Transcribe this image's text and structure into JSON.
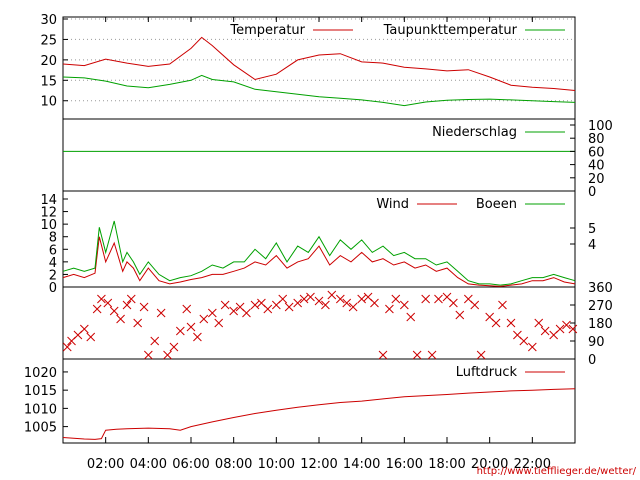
{
  "colors": {
    "red": "#cc0000",
    "green": "#00a000",
    "grid": "#999999",
    "url": "#cc0000"
  },
  "source_url": "http://www.tiefflieger.de/wetter/",
  "chart_data": [
    {
      "id": "temp",
      "type": "line",
      "title": "",
      "ylim": [
        7,
        30
      ],
      "yticks": [
        "30",
        "25",
        "20",
        "15",
        "10"
      ],
      "grid": true,
      "legend": "top-right",
      "x": [
        0,
        1,
        2,
        3,
        4,
        5,
        6,
        6.5,
        7,
        8,
        9,
        10,
        11,
        12,
        13,
        14,
        15,
        16,
        17,
        18,
        19,
        20,
        21,
        22,
        23,
        24
      ],
      "series": [
        {
          "name": "Temperatur",
          "color": "#cc0000",
          "values": [
            19,
            18.6,
            20.2,
            19.2,
            18.4,
            19.0,
            22.8,
            25.5,
            23.5,
            18.8,
            15.2,
            16.5,
            20.0,
            21.2,
            21.5,
            19.5,
            19.2,
            18.2,
            17.8,
            17.3,
            17.6,
            15.8,
            13.8,
            13.3,
            13.0,
            12.5
          ]
        },
        {
          "name": "Taupunkttemperatur",
          "color": "#00a000",
          "values": [
            15.8,
            15.6,
            14.8,
            13.6,
            13.2,
            14.0,
            15.0,
            16.2,
            15.2,
            14.6,
            12.8,
            12.2,
            11.6,
            11.0,
            10.6,
            10.2,
            9.6,
            8.8,
            9.7,
            10.1,
            10.3,
            10.4,
            10.2,
            10.0,
            9.8,
            9.6
          ]
        }
      ]
    },
    {
      "id": "rain",
      "type": "line",
      "ylim": [
        0,
        100
      ],
      "yticks_right": [
        "100",
        "80",
        "60",
        "40",
        "20",
        "0"
      ],
      "grid": false,
      "legend": "top-right",
      "x": [
        0,
        24
      ],
      "series": [
        {
          "name": "Niederschlag",
          "color": "#00a000",
          "values": [
            60,
            60
          ]
        }
      ]
    },
    {
      "id": "wind",
      "type": "line",
      "ylim": [
        0,
        14
      ],
      "yticks": [
        "14",
        "12",
        "10",
        "8",
        "6",
        "4",
        "2",
        "0"
      ],
      "yticks_right": [
        "5",
        "4"
      ],
      "grid": false,
      "legend": "top-right",
      "x": [
        0,
        0.5,
        1,
        1.5,
        1.7,
        2.0,
        2.4,
        2.8,
        3.0,
        3.3,
        3.6,
        4.0,
        4.5,
        5.0,
        5.5,
        6.0,
        6.5,
        7.0,
        7.5,
        8.0,
        8.5,
        9.0,
        9.5,
        10.0,
        10.5,
        11.0,
        11.5,
        12.0,
        12.5,
        13.0,
        13.5,
        14.0,
        14.5,
        15.0,
        15.5,
        16.0,
        16.5,
        17.0,
        17.5,
        18.0,
        18.5,
        19.0,
        19.5,
        20.0,
        20.5,
        21.0,
        21.5,
        22.0,
        22.5,
        23.0,
        23.5,
        24.0
      ],
      "series": [
        {
          "name": "Wind",
          "color": "#cc0000",
          "values": [
            1.5,
            2.0,
            1.5,
            2.2,
            8.0,
            4.0,
            7.0,
            2.5,
            4.0,
            3.0,
            1.0,
            3.0,
            1.0,
            0.5,
            0.8,
            1.2,
            1.5,
            2.0,
            2.0,
            2.5,
            3.0,
            4.0,
            3.5,
            5.0,
            3.0,
            4.0,
            4.5,
            6.5,
            3.5,
            5.0,
            4.0,
            5.5,
            4.0,
            4.5,
            3.5,
            4.0,
            3.0,
            3.5,
            2.5,
            3.0,
            1.5,
            0.5,
            0.3,
            0.2,
            0.1,
            0.3,
            0.5,
            1.0,
            1.0,
            1.5,
            0.8,
            0.5
          ]
        },
        {
          "name": "Boeen",
          "color": "#00a000",
          "values": [
            2.5,
            3.0,
            2.5,
            3.0,
            9.5,
            5.5,
            10.5,
            4.0,
            5.5,
            4.0,
            2.0,
            4.0,
            2.0,
            1.0,
            1.5,
            1.8,
            2.5,
            3.5,
            3.0,
            4.0,
            4.0,
            6.0,
            4.5,
            7.0,
            4.0,
            6.5,
            5.5,
            8.0,
            5.0,
            7.5,
            6.0,
            7.5,
            5.5,
            6.5,
            5.0,
            5.5,
            4.5,
            4.5,
            3.5,
            4.0,
            2.5,
            1.0,
            0.5,
            0.5,
            0.3,
            0.5,
            1.0,
            1.5,
            1.5,
            2.0,
            1.5,
            1.0
          ]
        }
      ]
    },
    {
      "id": "winddir",
      "type": "scatter",
      "ylim": [
        0,
        360
      ],
      "yticks_right": [
        "360",
        "270",
        "180",
        "90",
        "0"
      ],
      "grid": false,
      "x": [
        0.2,
        0.4,
        0.7,
        1.0,
        1.3,
        1.6,
        1.8,
        2.1,
        2.4,
        2.7,
        3.0,
        3.2,
        3.5,
        3.8,
        4.0,
        4.3,
        4.6,
        4.9,
        5.2,
        5.5,
        5.8,
        6.0,
        6.3,
        6.6,
        7.0,
        7.3,
        7.6,
        8.0,
        8.3,
        8.6,
        9.0,
        9.3,
        9.6,
        10.0,
        10.3,
        10.6,
        11.0,
        11.3,
        11.6,
        12.0,
        12.3,
        12.6,
        13.0,
        13.3,
        13.6,
        14.0,
        14.3,
        14.6,
        15.0,
        15.3,
        15.6,
        16.0,
        16.3,
        16.6,
        17.0,
        17.3,
        17.6,
        18.0,
        18.3,
        18.6,
        19.0,
        19.3,
        19.6,
        20.0,
        20.3,
        20.6,
        21.0,
        21.3,
        21.6,
        22.0,
        22.3,
        22.6,
        23.0,
        23.3,
        23.6,
        23.9
      ],
      "series": [
        {
          "name": "",
          "color": "#cc0000",
          "values": [
            60,
            90,
            120,
            150,
            110,
            250,
            300,
            280,
            240,
            200,
            270,
            300,
            180,
            260,
            20,
            90,
            230,
            20,
            60,
            140,
            250,
            160,
            110,
            200,
            230,
            180,
            270,
            240,
            260,
            230,
            270,
            280,
            250,
            270,
            300,
            260,
            280,
            300,
            310,
            290,
            270,
            320,
            300,
            280,
            260,
            300,
            310,
            280,
            20,
            250,
            300,
            270,
            210,
            20,
            300,
            20,
            300,
            310,
            280,
            220,
            300,
            270,
            20,
            210,
            180,
            270,
            180,
            120,
            90,
            60,
            180,
            140,
            120,
            150,
            170,
            150
          ]
        }
      ]
    },
    {
      "id": "pressure",
      "type": "line",
      "ylim": [
        1000.5,
        1023
      ],
      "yticks": [
        "1020",
        "1015",
        "1010",
        "1005"
      ],
      "grid": false,
      "legend": "top-right",
      "x": [
        0,
        0.5,
        1,
        1.5,
        1.8,
        2.0,
        2.5,
        3,
        4,
        5,
        5.5,
        6,
        7,
        8,
        9,
        10,
        11,
        12,
        13,
        14,
        15,
        16,
        17,
        18,
        19,
        20,
        21,
        22,
        23,
        24
      ],
      "series": [
        {
          "name": "Luftdruck",
          "color": "#cc0000",
          "values": [
            1002.0,
            1001.8,
            1001.6,
            1001.5,
            1001.7,
            1004.0,
            1004.3,
            1004.4,
            1004.6,
            1004.4,
            1004.0,
            1005.0,
            1006.3,
            1007.5,
            1008.6,
            1009.5,
            1010.3,
            1011.0,
            1011.6,
            1012.0,
            1012.6,
            1013.2,
            1013.5,
            1013.8,
            1014.2,
            1014.5,
            1014.8,
            1015.0,
            1015.2,
            1015.4
          ]
        }
      ]
    }
  ],
  "x_axis": {
    "range": [
      0,
      24
    ],
    "tick_labels": [
      "02:00",
      "04:00",
      "06:00",
      "08:00",
      "10:00",
      "12:00",
      "14:00",
      "16:00",
      "18:00",
      "20:00",
      "22:00"
    ]
  }
}
